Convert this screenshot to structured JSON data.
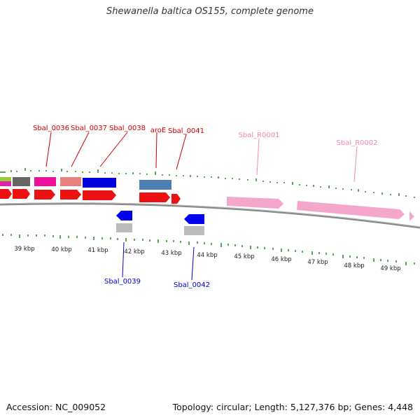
{
  "title": "Shewanella baltica OS155, complete genome",
  "footer": {
    "accession": "Accession: NC_009052",
    "summary": "Topology: circular; Length: 5,127,376 bp; Genes: 4,448"
  },
  "colors": {
    "label_red": "#cc0000",
    "label_blue": "#0000cc",
    "label_pink": "#ee88bb",
    "tick_green": "#228822",
    "backbone": "#888888"
  },
  "labels": {
    "top": [
      "Sbal_0036",
      "Sbal_0037",
      "Sbal_0038",
      "aroE",
      "Sbal_0041",
      "Sbal_R0001",
      "Sbal_R0002"
    ],
    "bottom": [
      "Sbal_0039",
      "Sbal_0042"
    ]
  },
  "scale": {
    "ticks": [
      "39 kbp",
      "40 kbp",
      "41 kbp",
      "42 kbp",
      "43 kbp",
      "44 kbp",
      "45 kbp",
      "46 kbp",
      "47 kbp",
      "48 kbp",
      "49 kbp"
    ]
  }
}
